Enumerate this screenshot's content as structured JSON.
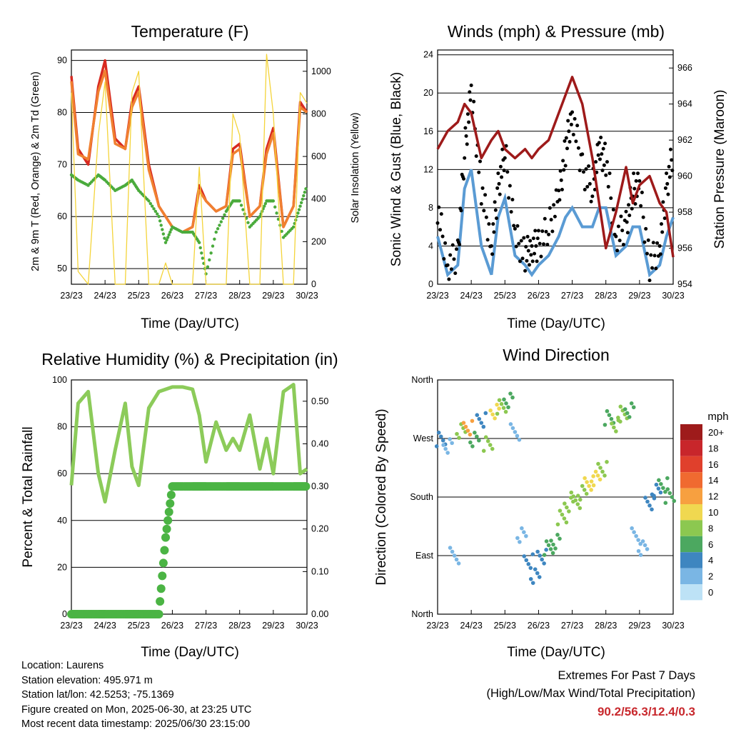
{
  "chart_data": [
    {
      "type": "line",
      "title": "Temperature (F)",
      "xlabel": "Time (Day/UTC)",
      "ylabel": "2m & 9m T (Red, Orange) & 2m Td (Green)",
      "y2label": "Solar Insolation (Yellow)",
      "x_ticks": [
        "23/23",
        "24/23",
        "25/23",
        "26/23",
        "27/23",
        "28/23",
        "29/23",
        "30/23"
      ],
      "ylim": [
        47,
        92
      ],
      "y_ticks": [
        50,
        60,
        70,
        80,
        90
      ],
      "y2lim": [
        0,
        1100
      ],
      "y2_ticks": [
        0,
        200,
        400,
        600,
        800,
        1000
      ],
      "grid": true,
      "x_days": [
        0,
        0.2,
        0.5,
        0.8,
        1.0,
        1.3,
        1.6,
        1.8,
        2.0,
        2.3,
        2.6,
        2.8,
        3.0,
        3.3,
        3.6,
        3.8,
        4.0,
        4.3,
        4.6,
        4.8,
        5.0,
        5.3,
        5.6,
        5.8,
        6.0,
        6.3,
        6.6,
        6.8,
        7.0
      ],
      "series": [
        {
          "color": "#d82a20",
          "axis": "left",
          "values": [
            87,
            73,
            70,
            85,
            90,
            75,
            73,
            82,
            85,
            70,
            62,
            60,
            58,
            57,
            58,
            66,
            63,
            61,
            62,
            73,
            74,
            60,
            62,
            73,
            77,
            58,
            62,
            82,
            80
          ]
        },
        {
          "color": "#f08030",
          "axis": "left",
          "values": [
            86,
            72,
            71,
            84,
            88,
            74,
            73,
            81,
            84,
            69,
            62,
            60,
            58,
            57,
            58,
            65,
            63,
            61,
            62,
            72,
            73,
            60,
            62,
            72,
            76,
            58,
            62,
            81,
            80
          ]
        },
        {
          "color": "#4aab3c",
          "axis": "left",
          "dots": true,
          "values": [
            68,
            67,
            66,
            68,
            67,
            65,
            66,
            67,
            65,
            63,
            60,
            55,
            58,
            57,
            57,
            55,
            49,
            57,
            61,
            63,
            63,
            58,
            60,
            63,
            63,
            56,
            58,
            62,
            66
          ]
        },
        {
          "color": "#f4d43a",
          "axis": "right",
          "values": [
            900,
            60,
            0,
            700,
            950,
            0,
            0,
            900,
            1000,
            0,
            0,
            100,
            0,
            0,
            0,
            550,
            0,
            0,
            0,
            800,
            700,
            0,
            0,
            1080,
            800,
            0,
            0,
            900,
            850
          ]
        }
      ]
    },
    {
      "type": "scatter",
      "title": "Winds (mph) & Pressure (mb)",
      "xlabel": "Time (Day/UTC)",
      "ylabel": "Sonic Wind & Gust (Blue, Black)",
      "y2label": "Station Pressure (Maroon)",
      "x_ticks": [
        "23/23",
        "24/23",
        "25/23",
        "26/23",
        "27/23",
        "28/23",
        "29/23",
        "30/23"
      ],
      "ylim": [
        0,
        24.5
      ],
      "y_ticks": [
        0,
        4,
        8,
        12,
        16,
        20,
        24
      ],
      "y2lim": [
        954,
        967
      ],
      "y2_ticks": [
        954,
        956,
        958,
        960,
        962,
        964,
        966
      ],
      "grid": true,
      "x_days": [
        0,
        0.3,
        0.6,
        0.8,
        1.0,
        1.3,
        1.6,
        1.8,
        2.0,
        2.3,
        2.6,
        2.8,
        3.0,
        3.3,
        3.6,
        3.8,
        4.0,
        4.3,
        4.6,
        4.8,
        5.0,
        5.3,
        5.6,
        5.8,
        6.0,
        6.3,
        6.6,
        6.8,
        7.0
      ],
      "series": [
        {
          "color": "#5a9bd4",
          "axis": "left",
          "values": [
            5,
            1,
            2,
            10,
            12,
            4,
            1,
            7,
            9,
            3,
            2,
            1,
            2,
            3,
            5,
            7,
            8,
            6,
            6,
            8,
            8,
            3,
            4,
            6,
            6,
            1,
            2,
            5,
            7
          ]
        },
        {
          "color": "#000000",
          "axis": "left",
          "values": [
            8,
            2,
            3,
            14,
            20,
            10,
            4,
            10,
            14,
            5,
            3,
            4,
            4,
            6,
            9,
            14,
            18,
            12,
            10,
            14,
            13,
            5,
            6,
            10,
            10,
            2,
            4,
            10,
            14
          ]
        },
        {
          "color": "#9e1a1a",
          "axis": "right",
          "values": [
            961.5,
            962.5,
            963.0,
            964.0,
            963.5,
            961.0,
            962.0,
            962.5,
            961.5,
            961.0,
            961.5,
            961.0,
            961.5,
            962.0,
            963.5,
            964.5,
            965.5,
            964.0,
            961.0,
            958.5,
            956.0,
            958.0,
            960.5,
            958.5,
            959.5,
            960.0,
            958.5,
            958.0,
            955.5
          ]
        }
      ]
    },
    {
      "type": "line",
      "title": "Relative Humidity (%) & Precipitation (in)",
      "xlabel": "Time (Day/UTC)",
      "ylabel": "Percent & Total Rainfall",
      "x_ticks": [
        "23/23",
        "24/23",
        "25/23",
        "26/23",
        "27/23",
        "28/23",
        "29/23",
        "30/23"
      ],
      "ylim": [
        0,
        100
      ],
      "y_ticks": [
        0,
        20,
        40,
        60,
        80,
        100
      ],
      "y2lim": [
        0,
        0.55
      ],
      "y2_ticks": [
        "0.00",
        "0.10",
        "0.20",
        "0.30",
        "0.40",
        "0.50"
      ],
      "grid": true,
      "x_days": [
        0,
        0.2,
        0.5,
        0.8,
        1.0,
        1.3,
        1.6,
        1.8,
        2.0,
        2.3,
        2.6,
        2.8,
        3.0,
        3.3,
        3.6,
        3.8,
        4.0,
        4.3,
        4.6,
        4.8,
        5.0,
        5.3,
        5.6,
        5.8,
        6.0,
        6.3,
        6.6,
        6.8,
        7.0
      ],
      "series": [
        {
          "color": "#8ccb5a",
          "axis": "left",
          "values": [
            55,
            90,
            95,
            60,
            48,
            70,
            90,
            63,
            55,
            88,
            95,
            96,
            97,
            97,
            96,
            85,
            65,
            82,
            70,
            75,
            70,
            85,
            62,
            75,
            60,
            95,
            98,
            60,
            62
          ]
        },
        {
          "color": "#4bb444",
          "axis": "right",
          "dots": true,
          "values": [
            0,
            0,
            0,
            0,
            0,
            0,
            0,
            0,
            0,
            0,
            0,
            0.18,
            0.3,
            0.3,
            0.3,
            0.3,
            0.3,
            0.3,
            0.3,
            0.3,
            0.3,
            0.3,
            0.3,
            0.3,
            0.3,
            0.3,
            0.3,
            0.3,
            0.3
          ]
        }
      ]
    },
    {
      "type": "scatter",
      "title": "Wind Direction",
      "xlabel": "Time (Day/UTC)",
      "ylabel": "Direction (Colored By Speed)",
      "x_ticks": [
        "23/23",
        "24/23",
        "25/23",
        "26/23",
        "27/23",
        "28/23",
        "29/23",
        "30/23"
      ],
      "y_ticks": [
        "North",
        "East",
        "South",
        "West",
        "North"
      ],
      "ylim": [
        0,
        360
      ],
      "grid": true,
      "colorbar": {
        "title": "mph",
        "labels": [
          "20+",
          "18",
          "16",
          "14",
          "12",
          "10",
          "8",
          "6",
          "4",
          "2",
          "0"
        ],
        "colors": [
          "#9e1b1b",
          "#c8262b",
          "#e0402c",
          "#f06a30",
          "#f7a040",
          "#f0d850",
          "#8cc850",
          "#4ca860",
          "#3e86c0",
          "#7ab6e4",
          "#bde2f6"
        ]
      },
      "x_days": [
        0.1,
        0.3,
        0.5,
        0.7,
        0.9,
        1.1,
        1.3,
        1.5,
        1.7,
        1.9,
        2.1,
        2.3,
        2.5,
        2.7,
        2.9,
        3.1,
        3.3,
        3.5,
        3.7,
        3.9,
        4.1,
        4.3,
        4.5,
        4.7,
        4.9,
        5.1,
        5.3,
        5.5,
        5.7,
        5.9,
        6.1,
        6.3,
        6.5,
        6.7,
        6.9
      ],
      "directions": [
        270,
        260,
        90,
        280,
        285,
        270,
        300,
        260,
        310,
        320,
        330,
        280,
        120,
        80,
        60,
        90,
        100,
        110,
        150,
        170,
        175,
        185,
        200,
        210,
        225,
        300,
        290,
        310,
        315,
        120,
        100,
        170,
        190,
        200,
        180
      ],
      "speeds": [
        3,
        2,
        1,
        7,
        12,
        5,
        3,
        8,
        9,
        7,
        6,
        2,
        1,
        4,
        3,
        4,
        5,
        6,
        7,
        7,
        8,
        8,
        9,
        9,
        8,
        6,
        7,
        8,
        6,
        1,
        2,
        3,
        4,
        5,
        6
      ]
    }
  ],
  "info": {
    "location": "Location: Laurens",
    "elevation": "Station elevation: 495.971 m",
    "latlon": "Station lat/lon: 42.5253; -75.1369",
    "created": "Figure created on Mon, 2025-06-30, at 23:25 UTC",
    "recent": "Most recent data timestamp: 2025/06/30 23:15:00"
  },
  "extremes": {
    "line1": "Extremes For Past 7 Days",
    "line2": "(High/Low/Max Wind/Total Precipitation)",
    "values": "90.2/56.3/12.4/0.3"
  }
}
